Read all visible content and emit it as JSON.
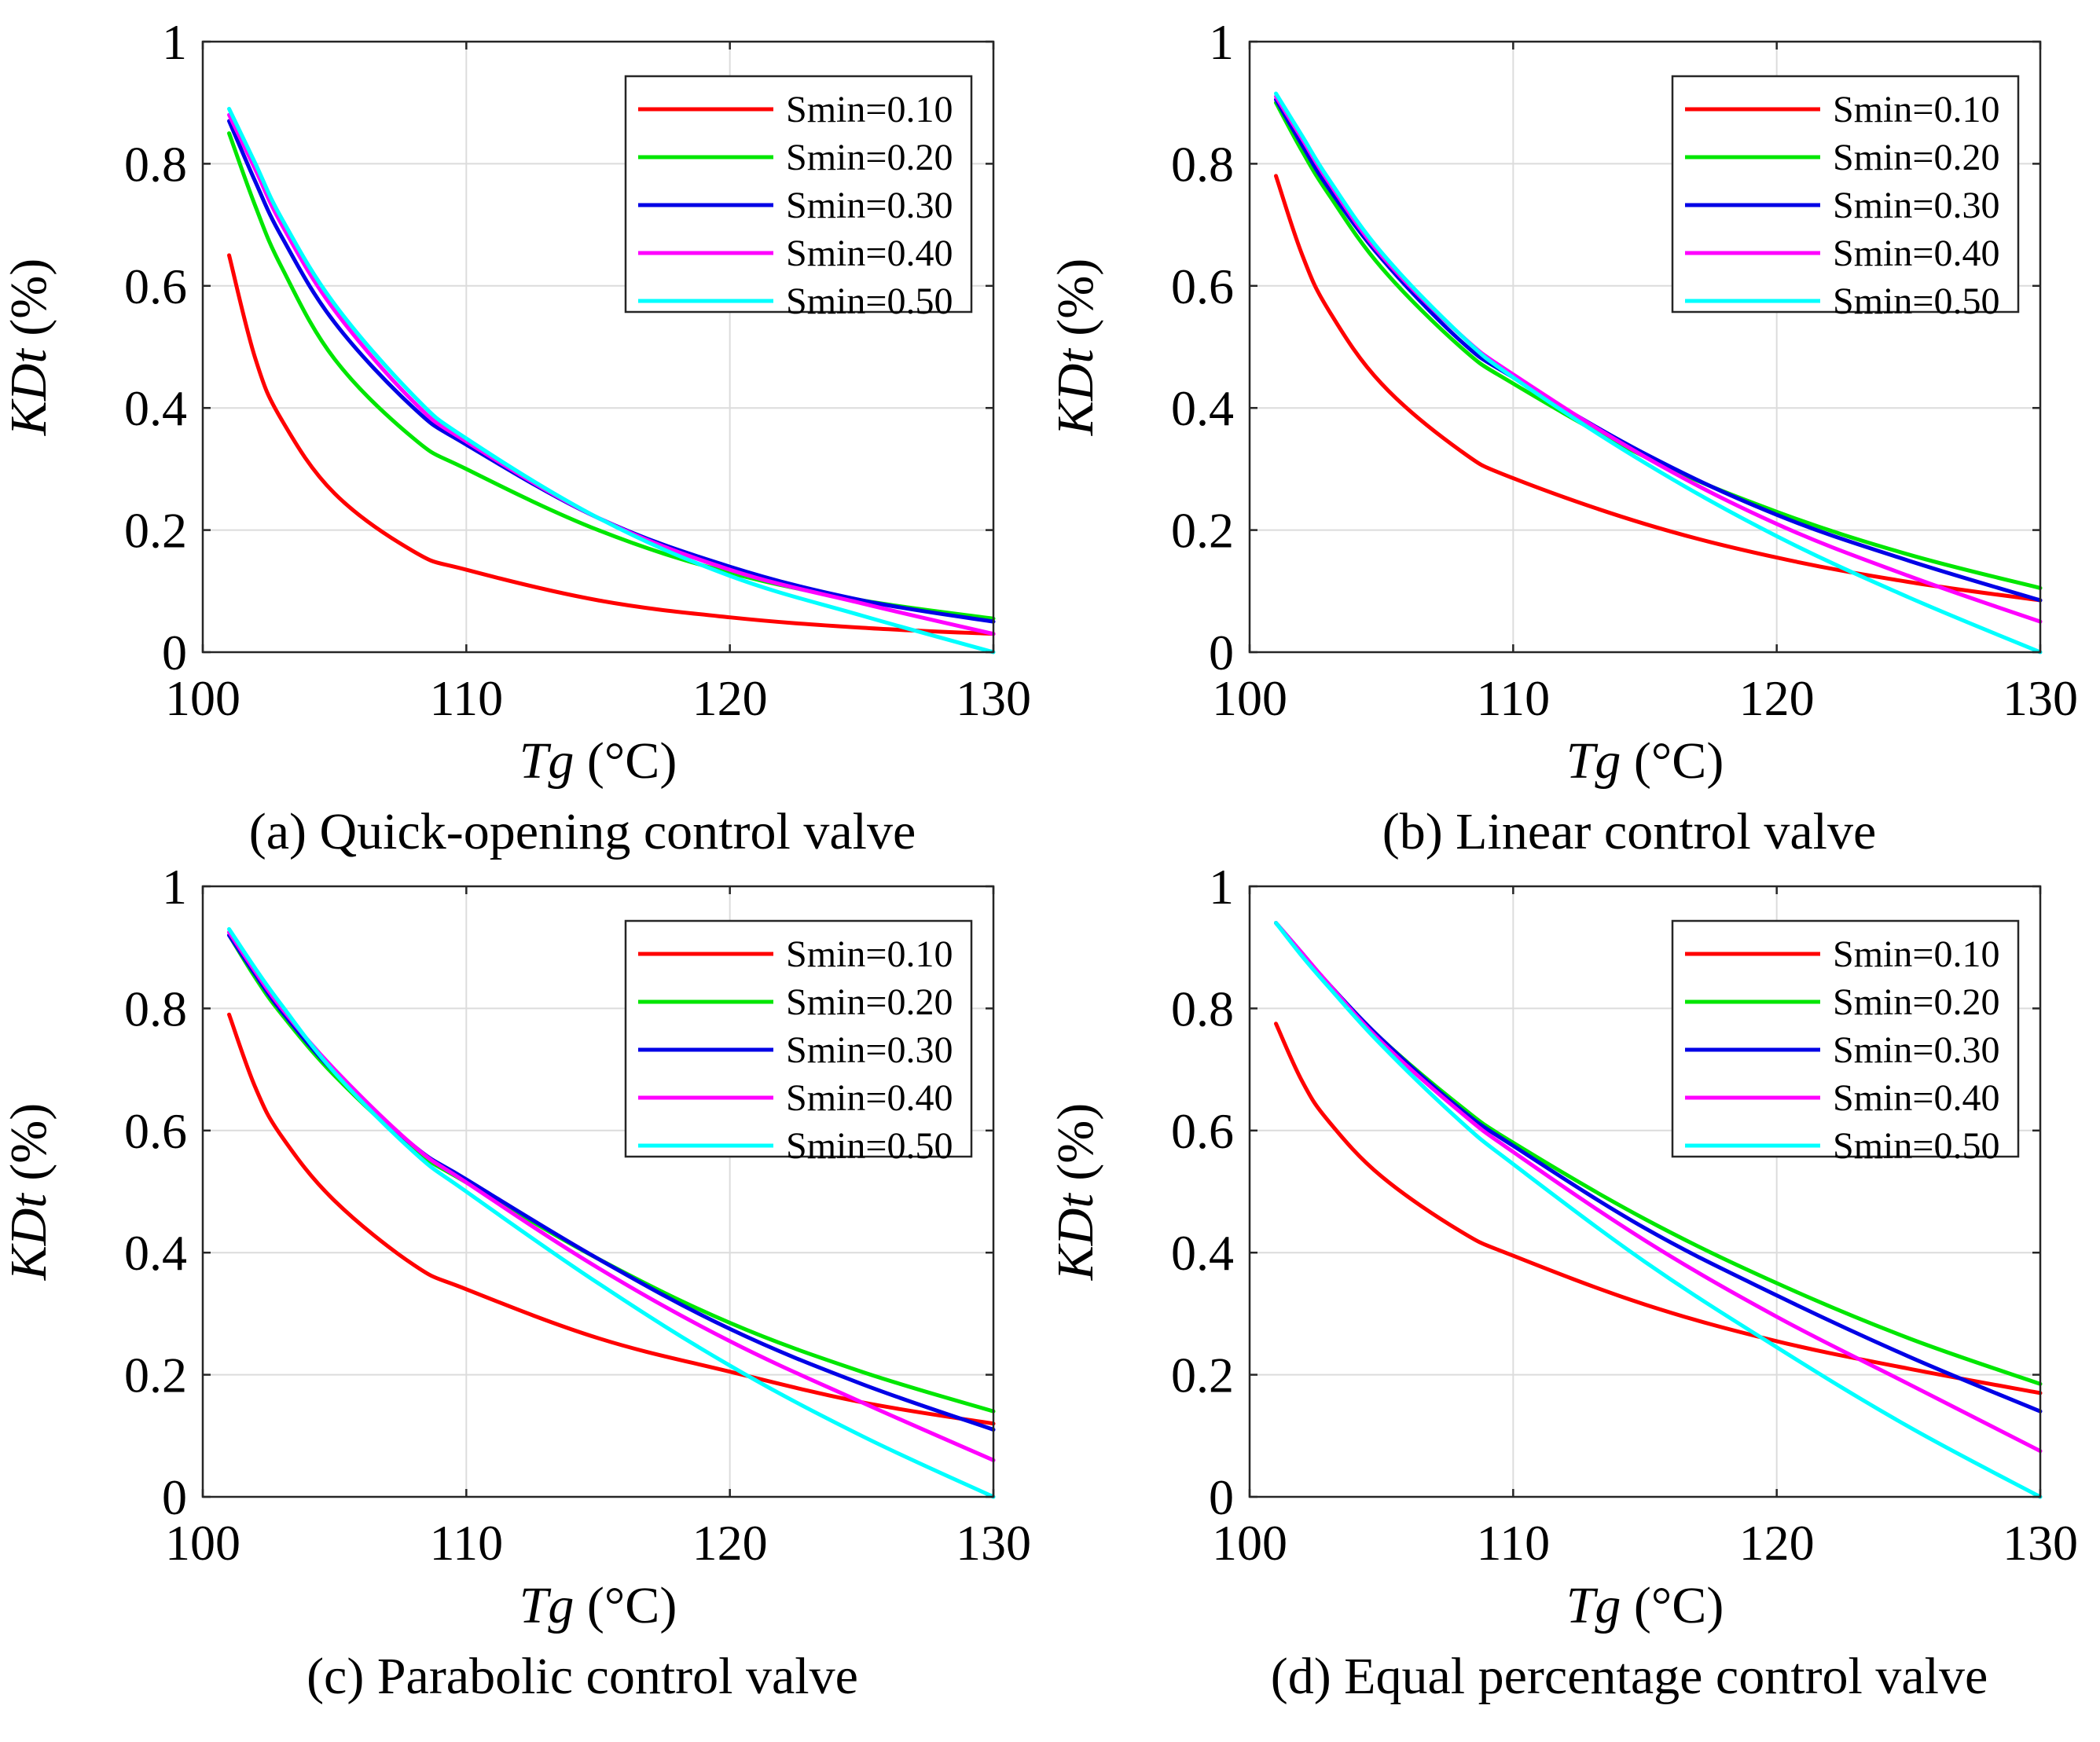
{
  "figure": {
    "series_colors": [
      "#ff0000",
      "#00e600",
      "#0000e6",
      "#ff00ff",
      "#00ffff"
    ]
  },
  "chart_data": [
    {
      "type": "line",
      "caption": "(a) Quick-opening control valve",
      "xlabel_var": "Tg",
      "xlabel_unit": " (°C)",
      "ylabel_var": "KDt",
      "ylabel_unit": " (%)",
      "xlim": [
        100,
        130
      ],
      "ylim": [
        0,
        1
      ],
      "x_ticks": [
        100,
        110,
        120,
        130
      ],
      "y_ticks": [
        0,
        0.2,
        0.4,
        0.6,
        0.8,
        1
      ],
      "y_tick_labels": [
        "0",
        "0.2",
        "0.4",
        "0.6",
        "0.8",
        "1"
      ],
      "grid": true,
      "legend": "top-right",
      "x": [
        101,
        102,
        103,
        105,
        108,
        110,
        115,
        120,
        125,
        130
      ],
      "series": [
        {
          "name": "Smin=0.10",
          "values": [
            0.65,
            0.48,
            0.38,
            0.26,
            0.165,
            0.135,
            0.085,
            0.057,
            0.04,
            0.03
          ]
        },
        {
          "name": "Smin=0.20",
          "values": [
            0.85,
            0.73,
            0.63,
            0.48,
            0.35,
            0.3,
            0.2,
            0.13,
            0.085,
            0.055
          ]
        },
        {
          "name": "Smin=0.30",
          "values": [
            0.87,
            0.77,
            0.68,
            0.54,
            0.4,
            0.34,
            0.22,
            0.14,
            0.085,
            0.05
          ]
        },
        {
          "name": "Smin=0.40",
          "values": [
            0.88,
            0.79,
            0.7,
            0.56,
            0.41,
            0.345,
            0.22,
            0.135,
            0.08,
            0.03
          ]
        },
        {
          "name": "Smin=0.50",
          "values": [
            0.89,
            0.8,
            0.71,
            0.57,
            0.42,
            0.35,
            0.22,
            0.125,
            0.06,
            0.0
          ]
        }
      ]
    },
    {
      "type": "line",
      "caption": "(b) Linear control valve",
      "xlabel_var": "Tg",
      "xlabel_unit": " (°C)",
      "ylabel_var": "KDt",
      "ylabel_unit": " (%)",
      "xlim": [
        100,
        130
      ],
      "ylim": [
        0,
        1
      ],
      "x_ticks": [
        100,
        110,
        120,
        130
      ],
      "y_ticks": [
        0,
        0.2,
        0.4,
        0.6,
        0.8,
        1
      ],
      "y_tick_labels": [
        "0",
        "0.2",
        "0.4",
        "0.6",
        "0.8",
        "1"
      ],
      "grid": true,
      "legend": "top-right",
      "x": [
        101,
        102,
        103,
        105,
        108,
        110,
        115,
        120,
        125,
        130
      ],
      "series": [
        {
          "name": "Smin=0.10",
          "values": [
            0.78,
            0.65,
            0.56,
            0.44,
            0.33,
            0.285,
            0.21,
            0.155,
            0.115,
            0.085
          ]
        },
        {
          "name": "Smin=0.20",
          "values": [
            0.9,
            0.82,
            0.75,
            0.63,
            0.5,
            0.44,
            0.32,
            0.23,
            0.16,
            0.105
          ]
        },
        {
          "name": "Smin=0.30",
          "values": [
            0.905,
            0.83,
            0.76,
            0.645,
            0.51,
            0.45,
            0.325,
            0.225,
            0.15,
            0.085
          ]
        },
        {
          "name": "Smin=0.40",
          "values": [
            0.91,
            0.84,
            0.77,
            0.65,
            0.52,
            0.455,
            0.32,
            0.21,
            0.125,
            0.05
          ]
        },
        {
          "name": "Smin=0.50",
          "values": [
            0.915,
            0.845,
            0.775,
            0.655,
            0.52,
            0.45,
            0.31,
            0.19,
            0.09,
            0.0
          ]
        }
      ]
    },
    {
      "type": "line",
      "caption": "(c) Parabolic control valve",
      "xlabel_var": "Tg",
      "xlabel_unit": " (°C)",
      "ylabel_var": "KDt",
      "ylabel_unit": " (%)",
      "xlim": [
        100,
        130
      ],
      "ylim": [
        0,
        1
      ],
      "x_ticks": [
        100,
        110,
        120,
        130
      ],
      "y_ticks": [
        0,
        0.2,
        0.4,
        0.6,
        0.8,
        1
      ],
      "y_tick_labels": [
        "0",
        "0.2",
        "0.4",
        "0.6",
        "0.8",
        "1"
      ],
      "grid": true,
      "legend": "top-right",
      "x": [
        101,
        102,
        103,
        105,
        108,
        110,
        115,
        120,
        125,
        130
      ],
      "series": [
        {
          "name": "Smin=0.10",
          "values": [
            0.79,
            0.67,
            0.59,
            0.485,
            0.38,
            0.34,
            0.26,
            0.205,
            0.155,
            0.12
          ]
        },
        {
          "name": "Smin=0.20",
          "values": [
            0.92,
            0.85,
            0.79,
            0.69,
            0.57,
            0.515,
            0.39,
            0.285,
            0.205,
            0.14
          ]
        },
        {
          "name": "Smin=0.30",
          "values": [
            0.92,
            0.855,
            0.795,
            0.695,
            0.575,
            0.52,
            0.39,
            0.275,
            0.185,
            0.11
          ]
        },
        {
          "name": "Smin=0.40",
          "values": [
            0.925,
            0.86,
            0.8,
            0.7,
            0.575,
            0.515,
            0.375,
            0.255,
            0.155,
            0.06
          ]
        },
        {
          "name": "Smin=0.50",
          "values": [
            0.93,
            0.865,
            0.805,
            0.695,
            0.565,
            0.5,
            0.35,
            0.215,
            0.1,
            0.0
          ]
        }
      ]
    },
    {
      "type": "line",
      "caption": "(d) Equal percentage control valve",
      "xlabel_var": "Tg",
      "xlabel_unit": " (°C)",
      "ylabel_var": "KDt",
      "ylabel_unit": " (%)",
      "xlim": [
        100,
        130
      ],
      "ylim": [
        0,
        1
      ],
      "x_ticks": [
        100,
        110,
        120,
        130
      ],
      "y_ticks": [
        0,
        0.2,
        0.4,
        0.6,
        0.8,
        1
      ],
      "y_tick_labels": [
        "0",
        "0.2",
        "0.4",
        "0.6",
        "0.8",
        "1"
      ],
      "grid": true,
      "legend": "top-right",
      "x": [
        101,
        102,
        103,
        105,
        108,
        110,
        115,
        120,
        125,
        130
      ],
      "series": [
        {
          "name": "Smin=0.10",
          "values": [
            0.775,
            0.68,
            0.615,
            0.525,
            0.435,
            0.395,
            0.315,
            0.255,
            0.21,
            0.17
          ]
        },
        {
          "name": "Smin=0.20",
          "values": [
            0.94,
            0.89,
            0.84,
            0.75,
            0.64,
            0.58,
            0.455,
            0.35,
            0.26,
            0.185
          ]
        },
        {
          "name": "Smin=0.30",
          "values": [
            0.94,
            0.89,
            0.84,
            0.75,
            0.635,
            0.575,
            0.44,
            0.33,
            0.23,
            0.14
          ]
        },
        {
          "name": "Smin=0.40",
          "values": [
            0.94,
            0.89,
            0.84,
            0.745,
            0.63,
            0.565,
            0.42,
            0.295,
            0.185,
            0.075
          ]
        },
        {
          "name": "Smin=0.50",
          "values": [
            0.94,
            0.885,
            0.835,
            0.74,
            0.615,
            0.545,
            0.385,
            0.245,
            0.115,
            0.0
          ]
        }
      ]
    }
  ]
}
